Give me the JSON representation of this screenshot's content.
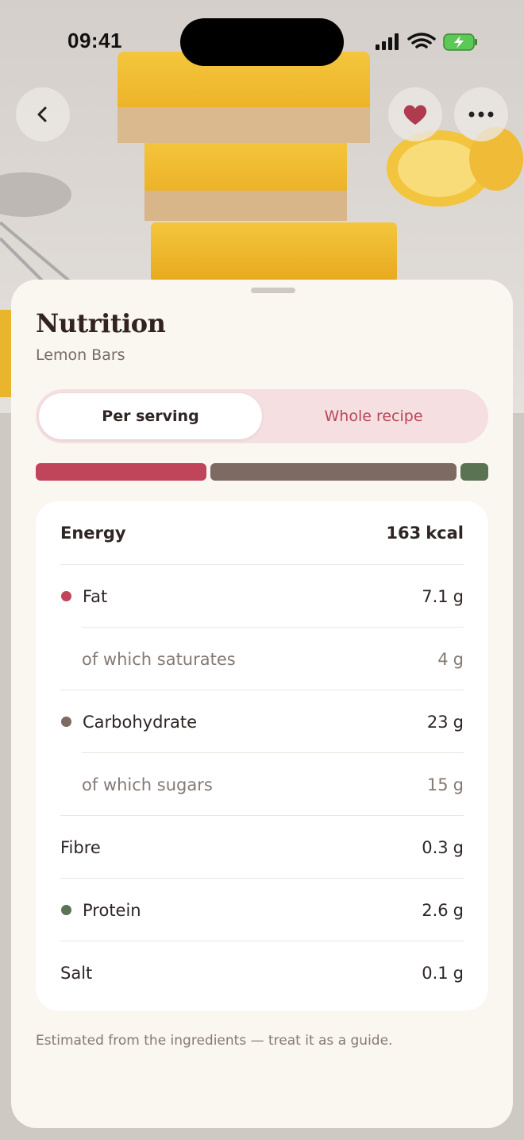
{
  "status_bar": {
    "time": "09:41"
  },
  "sheet": {
    "title": "Nutrition",
    "subtitle": "Lemon Bars",
    "tabs": [
      {
        "label": "Per serving",
        "selected": true
      },
      {
        "label": "Whole recipe",
        "selected": false
      }
    ],
    "nutrients": [
      {
        "name": "Energy",
        "amount": 163,
        "unit": "kcal",
        "bold": true
      },
      {
        "name": "Fat",
        "amount": 7.1,
        "unit": "g",
        "color": "#c0455a"
      },
      {
        "name": "of which saturates",
        "amount": 4,
        "unit": "g",
        "sub": true
      },
      {
        "name": "Carbohydrate",
        "amount": 23,
        "unit": "g",
        "color": "#7c6a63"
      },
      {
        "name": "of which sugars",
        "amount": 15,
        "unit": "g",
        "sub": true
      },
      {
        "name": "Fibre",
        "amount": 0.3,
        "unit": "g"
      },
      {
        "name": "Protein",
        "amount": 2.6,
        "unit": "g",
        "color": "#5a7353"
      },
      {
        "name": "Salt",
        "amount": 0.1,
        "unit": "g"
      }
    ],
    "footnote": "Estimated from the ingredients — treat it as a guide."
  }
}
